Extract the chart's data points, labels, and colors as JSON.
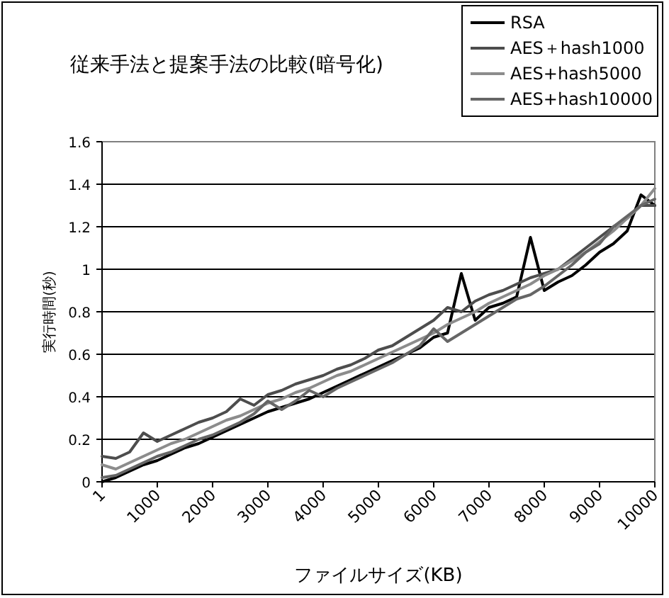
{
  "chart_data": {
    "type": "line",
    "title": "従来手法と提案手法の比較(暗号化)",
    "xlabel": "ファイルサイズ(KB)",
    "ylabel": "実行時間(秒)",
    "x": [
      1,
      250,
      500,
      750,
      1000,
      1250,
      1500,
      1750,
      2000,
      2250,
      2500,
      2750,
      3000,
      3250,
      3500,
      3750,
      4000,
      4250,
      4500,
      4750,
      5000,
      5250,
      5500,
      5750,
      6000,
      6250,
      6500,
      6750,
      7000,
      7250,
      7500,
      7750,
      8000,
      8250,
      8500,
      8750,
      9000,
      9250,
      9500,
      9750,
      10000
    ],
    "series": [
      {
        "name": "RSA",
        "color": "#000000",
        "values": [
          0,
          0.02,
          0.05,
          0.08,
          0.1,
          0.13,
          0.16,
          0.18,
          0.21,
          0.24,
          0.27,
          0.3,
          0.33,
          0.35,
          0.37,
          0.39,
          0.42,
          0.45,
          0.48,
          0.51,
          0.54,
          0.57,
          0.6,
          0.63,
          0.68,
          0.7,
          0.98,
          0.76,
          0.82,
          0.84,
          0.87,
          1.15,
          0.9,
          0.94,
          0.97,
          1.02,
          1.08,
          1.12,
          1.18,
          1.35,
          1.3
        ]
      },
      {
        "name": "AES＋hash1000",
        "color": "#4d4d4d",
        "values": [
          0.12,
          0.11,
          0.14,
          0.23,
          0.19,
          0.22,
          0.25,
          0.28,
          0.3,
          0.33,
          0.39,
          0.36,
          0.41,
          0.43,
          0.46,
          0.48,
          0.5,
          0.53,
          0.55,
          0.58,
          0.62,
          0.64,
          0.68,
          0.72,
          0.76,
          0.82,
          0.8,
          0.85,
          0.88,
          0.9,
          0.93,
          0.96,
          0.98,
          1.0,
          1.05,
          1.1,
          1.15,
          1.2,
          1.24,
          1.3,
          1.3
        ]
      },
      {
        "name": "AES+hash5000",
        "color": "#8c8c8c",
        "values": [
          0.08,
          0.06,
          0.09,
          0.12,
          0.15,
          0.18,
          0.2,
          0.23,
          0.26,
          0.29,
          0.31,
          0.34,
          0.37,
          0.39,
          0.42,
          0.44,
          0.47,
          0.5,
          0.52,
          0.55,
          0.58,
          0.61,
          0.64,
          0.67,
          0.7,
          0.74,
          0.77,
          0.8,
          0.84,
          0.87,
          0.9,
          0.93,
          0.97,
          1.0,
          1.04,
          1.08,
          1.13,
          1.18,
          1.24,
          1.3,
          1.38
        ]
      },
      {
        "name": "AES+hash10000",
        "color": "#666666",
        "values": [
          0.02,
          0.03,
          0.06,
          0.09,
          0.12,
          0.14,
          0.17,
          0.2,
          0.22,
          0.25,
          0.28,
          0.32,
          0.38,
          0.34,
          0.38,
          0.43,
          0.4,
          0.44,
          0.47,
          0.5,
          0.53,
          0.56,
          0.6,
          0.64,
          0.72,
          0.66,
          0.7,
          0.74,
          0.78,
          0.82,
          0.86,
          0.88,
          0.92,
          0.97,
          1.02,
          1.08,
          1.12,
          1.2,
          1.25,
          1.3,
          1.33
        ]
      }
    ],
    "xlim": [
      1,
      10000
    ],
    "xticks": [
      1,
      1000,
      2000,
      3000,
      4000,
      5000,
      6000,
      7000,
      8000,
      9000,
      10000
    ],
    "ylim": [
      0,
      1.6
    ],
    "yticks": [
      0,
      0.2,
      0.4,
      0.6,
      0.8,
      1,
      1.2,
      1.4,
      1.6
    ],
    "grid": "y",
    "legend": "top right",
    "marker": "none",
    "line_style": "solid"
  }
}
